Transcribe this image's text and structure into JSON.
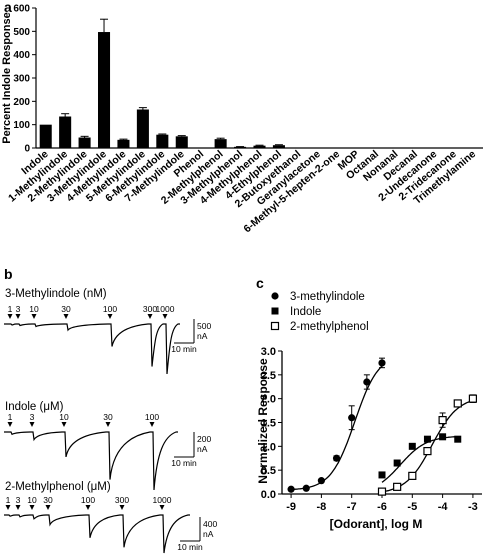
{
  "panels": {
    "a": "a",
    "b": "b",
    "c": "c"
  },
  "chart_data": [
    {
      "panel": "a",
      "type": "bar",
      "title": "",
      "xlabel": "",
      "ylabel": "Percent Indole Response",
      "ylim": [
        0,
        600
      ],
      "yticks": [
        "0",
        "100",
        "200",
        "300",
        "400",
        "500",
        "600"
      ],
      "grid": false,
      "categories": [
        "Indole",
        "1-Methylindole",
        "2-Methylindole",
        "3-Methylindole",
        "4-Methylindole",
        "5-Methylindole",
        "6-Methylindole",
        "7-Methylindole",
        "Phenol",
        "2-Methylphenol",
        "3-Methylphenol",
        "4-Methylphenol",
        "4-Ethylphenol",
        "2-Butoxyethanol",
        "Geranylacetone",
        "6-Methyl-5-hepten-2-one",
        "MOP",
        "Octanal",
        "Nonanal",
        "Decanal",
        "2-Undecanone",
        "2-Tridecanone",
        "Trimethylamine"
      ],
      "values": [
        100,
        135,
        45,
        497,
        35,
        165,
        57,
        50,
        0,
        38,
        5,
        10,
        12,
        0,
        0,
        0,
        0,
        0,
        0,
        0,
        0,
        0,
        0
      ],
      "errors": [
        0,
        12,
        5,
        55,
        3,
        8,
        3,
        3,
        0,
        4,
        1,
        2,
        2,
        0,
        0,
        0,
        0,
        0,
        0,
        0,
        0,
        0,
        0
      ],
      "color": "#000000"
    },
    {
      "panel": "b",
      "type": "line",
      "xlabel": "",
      "ylabel": "",
      "traces": [
        {
          "label": "3-Methylindole (nM)",
          "doses": [
            "1",
            "3",
            "10",
            "30",
            "100",
            "300",
            "1000"
          ],
          "amplitudes": [
            0.02,
            0.03,
            0.05,
            0.12,
            0.45,
            0.85,
            1.0
          ],
          "scale_value": "500",
          "scale_unit": "nA",
          "time_label": "10 min"
        },
        {
          "label": "Indole (μM)",
          "doses": [
            "1",
            "3",
            "10",
            "30",
            "100"
          ],
          "amplitudes": [
            0.04,
            0.13,
            0.43,
            0.82,
            1.0
          ],
          "scale_value": "200",
          "scale_unit": "nA",
          "time_label": "10 min"
        },
        {
          "label": "2-Methylphenol (μM)",
          "doses": [
            "1",
            "3",
            "10",
            "30",
            "100",
            "300",
            "1000"
          ],
          "amplitudes": [
            0.03,
            0.05,
            0.1,
            0.25,
            0.6,
            0.85,
            1.0
          ],
          "scale_value": "400",
          "scale_unit": "nA",
          "time_label": "10 min"
        }
      ]
    },
    {
      "panel": "c",
      "type": "scatter",
      "title": "",
      "xlabel": "[Odorant], log M",
      "ylabel": "Normalized Response",
      "xlim": [
        -9.3,
        -2.7
      ],
      "ylim": [
        0,
        3.0
      ],
      "xticks": [
        "-9",
        "-8",
        "-7",
        "-6",
        "-5",
        "-4",
        "-3"
      ],
      "yticks": [
        "0.0",
        "0.5",
        "1.0",
        "1.5",
        "2.0",
        "2.5",
        "3.0"
      ],
      "grid": false,
      "legend_position": "top-left",
      "series": [
        {
          "name": "3-methylindole",
          "marker": "filled-circle",
          "x": [
            -9,
            -8.5,
            -8,
            -7.5,
            -7,
            -6.5,
            -6
          ],
          "y": [
            0.1,
            0.12,
            0.28,
            0.75,
            1.6,
            2.35,
            2.75
          ],
          "err": [
            0,
            0,
            0,
            0.05,
            0.25,
            0.15,
            0.1
          ],
          "fit": {
            "bottom": 0.08,
            "top": 2.95,
            "logEC50": -6.9,
            "hill": 1.1
          }
        },
        {
          "name": "Indole",
          "marker": "filled-square",
          "x": [
            -6,
            -5.5,
            -5,
            -4.5,
            -4,
            -3.5
          ],
          "y": [
            0.4,
            0.65,
            1.0,
            1.15,
            1.2,
            1.15
          ],
          "err": [
            0,
            0,
            0,
            0,
            0,
            0
          ],
          "fit": {
            "bottom": 0.0,
            "top": 1.22,
            "logEC50": -5.4,
            "hill": 1.0,
            "xmin": -6,
            "xmax": -3.5
          }
        },
        {
          "name": "2-methylphenol",
          "marker": "open-square",
          "x": [
            -6,
            -5.5,
            -5,
            -4.5,
            -4,
            -3.5,
            -3
          ],
          "y": [
            0.05,
            0.15,
            0.38,
            0.9,
            1.55,
            1.9,
            2.0
          ],
          "err": [
            0,
            0,
            0,
            0,
            0.15,
            0.05,
            0.08
          ],
          "fit": {
            "bottom": 0.0,
            "top": 2.05,
            "logEC50": -4.35,
            "hill": 1.0,
            "xmin": -6,
            "xmax": -3
          }
        }
      ]
    }
  ]
}
